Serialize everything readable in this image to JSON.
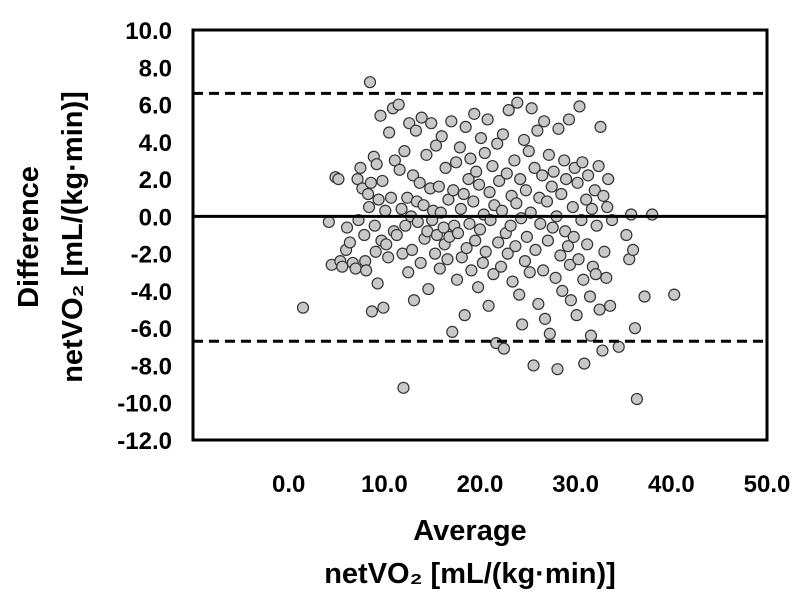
{
  "chart_data": {
    "type": "scatter",
    "title": "",
    "xlabel": "Average",
    "xlabel_unit": "netVO₂ [mL/(kg·min)]",
    "ylabel": "Difference",
    "ylabel_unit": "netVO₂ [mL/(kg·min)]",
    "xlim": [
      -10,
      50
    ],
    "ylim": [
      -12,
      10
    ],
    "x_ticks": [
      "0.0",
      "10.0",
      "20.0",
      "30.0",
      "40.0",
      "50.0"
    ],
    "y_ticks": [
      "10.0",
      "8.0",
      "6.0",
      "4.0",
      "2.0",
      "0.0",
      "-2.0",
      "-4.0",
      "-6.0",
      "-8.0",
      "-10.0",
      "-12.0"
    ],
    "grid": false,
    "marker_color": "#c8c8c8",
    "marker_edge": "#333333",
    "reference_lines": [
      {
        "y": 6.6,
        "style": "dashed"
      },
      {
        "y": 0.0,
        "style": "solid"
      },
      {
        "y": -6.7,
        "style": "dashed"
      }
    ],
    "points": [
      [
        1.5,
        -4.9
      ],
      [
        4.2,
        -0.3
      ],
      [
        4.5,
        -2.6
      ],
      [
        4.9,
        2.1
      ],
      [
        5.2,
        2.0
      ],
      [
        5.4,
        -2.4
      ],
      [
        5.6,
        -2.7
      ],
      [
        6.0,
        -1.8
      ],
      [
        6.1,
        -0.6
      ],
      [
        6.4,
        -1.4
      ],
      [
        6.7,
        -2.5
      ],
      [
        7.0,
        -2.8
      ],
      [
        7.2,
        2.0
      ],
      [
        7.3,
        -0.2
      ],
      [
        7.5,
        2.6
      ],
      [
        7.7,
        1.5
      ],
      [
        7.9,
        -1.0
      ],
      [
        8.0,
        -2.4
      ],
      [
        8.1,
        -2.9
      ],
      [
        8.3,
        1.2
      ],
      [
        8.4,
        0.5
      ],
      [
        8.5,
        7.2
      ],
      [
        8.6,
        1.8
      ],
      [
        8.7,
        -5.1
      ],
      [
        8.9,
        3.2
      ],
      [
        9.0,
        -0.5
      ],
      [
        9.1,
        -1.9
      ],
      [
        9.2,
        2.8
      ],
      [
        9.3,
        -3.6
      ],
      [
        9.4,
        0.9
      ],
      [
        9.6,
        5.4
      ],
      [
        9.7,
        -1.3
      ],
      [
        9.8,
        1.9
      ],
      [
        9.9,
        -4.9
      ],
      [
        10.1,
        0.3
      ],
      [
        10.2,
        -1.5
      ],
      [
        10.4,
        -2.2
      ],
      [
        10.5,
        4.5
      ],
      [
        10.7,
        1.0
      ],
      [
        10.9,
        5.8
      ],
      [
        11.0,
        -0.8
      ],
      [
        11.1,
        3.0
      ],
      [
        11.3,
        -1.0
      ],
      [
        11.5,
        6.0
      ],
      [
        11.6,
        2.5
      ],
      [
        11.8,
        0.4
      ],
      [
        11.9,
        -2.0
      ],
      [
        12.0,
        -9.2
      ],
      [
        12.1,
        3.5
      ],
      [
        12.2,
        -0.5
      ],
      [
        12.4,
        1.0
      ],
      [
        12.5,
        -3.0
      ],
      [
        12.6,
        5.0
      ],
      [
        12.8,
        0.0
      ],
      [
        12.9,
        -1.8
      ],
      [
        13.0,
        2.2
      ],
      [
        13.1,
        -4.5
      ],
      [
        13.3,
        4.6
      ],
      [
        13.4,
        0.8
      ],
      [
        13.5,
        -0.3
      ],
      [
        13.7,
        1.8
      ],
      [
        13.8,
        -2.5
      ],
      [
        13.9,
        5.3
      ],
      [
        14.1,
        0.6
      ],
      [
        14.2,
        -1.2
      ],
      [
        14.4,
        3.3
      ],
      [
        14.5,
        -0.8
      ],
      [
        14.6,
        -3.9
      ],
      [
        14.8,
        1.5
      ],
      [
        14.9,
        5.0
      ],
      [
        15.0,
        -0.2
      ],
      [
        15.1,
        0.3
      ],
      [
        15.3,
        -2.0
      ],
      [
        15.4,
        3.8
      ],
      [
        15.5,
        -1.0
      ],
      [
        15.7,
        1.6
      ],
      [
        15.8,
        -2.8
      ],
      [
        15.9,
        0.2
      ],
      [
        16.0,
        4.3
      ],
      [
        16.2,
        -0.6
      ],
      [
        16.3,
        -1.5
      ],
      [
        16.4,
        2.6
      ],
      [
        16.6,
        -2.3
      ],
      [
        16.7,
        0.9
      ],
      [
        16.8,
        -1.1
      ],
      [
        17.0,
        5.1
      ],
      [
        17.1,
        -6.2
      ],
      [
        17.2,
        1.4
      ],
      [
        17.3,
        -0.5
      ],
      [
        17.5,
        2.9
      ],
      [
        17.6,
        -3.4
      ],
      [
        17.7,
        -0.9
      ],
      [
        17.9,
        3.7
      ],
      [
        18.0,
        0.4
      ],
      [
        18.1,
        -2.2
      ],
      [
        18.3,
        1.2
      ],
      [
        18.4,
        -5.3
      ],
      [
        18.5,
        4.8
      ],
      [
        18.6,
        -1.7
      ],
      [
        18.8,
        2.0
      ],
      [
        18.9,
        -0.4
      ],
      [
        19.0,
        3.1
      ],
      [
        19.1,
        -2.9
      ],
      [
        19.3,
        0.8
      ],
      [
        19.4,
        5.5
      ],
      [
        19.5,
        -1.3
      ],
      [
        19.6,
        2.4
      ],
      [
        19.8,
        -3.8
      ],
      [
        19.9,
        1.7
      ],
      [
        20.0,
        -0.7
      ],
      [
        20.1,
        4.2
      ],
      [
        20.3,
        -2.5
      ],
      [
        20.4,
        0.1
      ],
      [
        20.5,
        3.4
      ],
      [
        20.6,
        -1.9
      ],
      [
        20.8,
        5.2
      ],
      [
        20.9,
        -4.8
      ],
      [
        21.0,
        1.3
      ],
      [
        21.1,
        -0.2
      ],
      [
        21.3,
        2.7
      ],
      [
        21.4,
        -3.1
      ],
      [
        21.5,
        0.6
      ],
      [
        21.7,
        -6.8
      ],
      [
        21.8,
        3.9
      ],
      [
        21.9,
        -1.4
      ],
      [
        22.0,
        1.9
      ],
      [
        22.2,
        -2.7
      ],
      [
        22.3,
        0.3
      ],
      [
        22.4,
        4.4
      ],
      [
        22.5,
        -7.1
      ],
      [
        22.7,
        -0.9
      ],
      [
        22.8,
        2.3
      ],
      [
        22.9,
        -2.0
      ],
      [
        23.0,
        5.7
      ],
      [
        23.2,
        -0.5
      ],
      [
        23.3,
        1.1
      ],
      [
        23.4,
        -3.5
      ],
      [
        23.6,
        3.0
      ],
      [
        23.7,
        -1.6
      ],
      [
        23.8,
        0.7
      ],
      [
        23.9,
        6.1
      ],
      [
        24.1,
        -4.2
      ],
      [
        24.2,
        2.0
      ],
      [
        24.3,
        -0.1
      ],
      [
        24.4,
        -5.8
      ],
      [
        24.6,
        4.1
      ],
      [
        24.7,
        -2.4
      ],
      [
        24.8,
        1.4
      ],
      [
        24.9,
        -1.1
      ],
      [
        25.1,
        3.5
      ],
      [
        25.2,
        -3.0
      ],
      [
        25.3,
        0.2
      ],
      [
        25.4,
        5.8
      ],
      [
        25.6,
        -8.0
      ],
      [
        25.7,
        2.6
      ],
      [
        25.8,
        -1.8
      ],
      [
        26.0,
        4.6
      ],
      [
        26.1,
        -4.7
      ],
      [
        26.2,
        1.0
      ],
      [
        26.3,
        -0.4
      ],
      [
        26.5,
        2.2
      ],
      [
        26.6,
        -2.9
      ],
      [
        26.7,
        5.1
      ],
      [
        26.8,
        -5.5
      ],
      [
        27.0,
        0.8
      ],
      [
        27.1,
        -1.3
      ],
      [
        27.2,
        3.3
      ],
      [
        27.3,
        -6.3
      ],
      [
        27.5,
        1.6
      ],
      [
        27.6,
        -0.6
      ],
      [
        27.7,
        2.4
      ],
      [
        27.9,
        -3.3
      ],
      [
        28.0,
        0.0
      ],
      [
        28.1,
        -8.2
      ],
      [
        28.2,
        4.7
      ],
      [
        28.4,
        -2.1
      ],
      [
        28.5,
        1.2
      ],
      [
        28.6,
        -4.0
      ],
      [
        28.8,
        3.0
      ],
      [
        28.9,
        -0.8
      ],
      [
        29.0,
        2.0
      ],
      [
        29.2,
        -1.6
      ],
      [
        29.3,
        5.2
      ],
      [
        29.4,
        -2.6
      ],
      [
        29.5,
        -4.5
      ],
      [
        29.7,
        0.5
      ],
      [
        29.8,
        -1.1
      ],
      [
        29.9,
        2.6
      ],
      [
        30.1,
        -5.3
      ],
      [
        30.2,
        1.8
      ],
      [
        30.3,
        -2.3
      ],
      [
        30.4,
        5.9
      ],
      [
        30.6,
        -0.2
      ],
      [
        30.7,
        2.9
      ],
      [
        30.8,
        -3.4
      ],
      [
        30.9,
        -7.9
      ],
      [
        31.1,
        0.9
      ],
      [
        31.2,
        -1.5
      ],
      [
        31.3,
        2.2
      ],
      [
        31.5,
        -4.3
      ],
      [
        31.6,
        -6.4
      ],
      [
        31.7,
        0.4
      ],
      [
        31.8,
        -2.7
      ],
      [
        32.0,
        1.4
      ],
      [
        32.1,
        -3.1
      ],
      [
        32.2,
        -0.5
      ],
      [
        32.4,
        2.7
      ],
      [
        32.5,
        -5.0
      ],
      [
        32.6,
        4.8
      ],
      [
        32.8,
        -7.2
      ],
      [
        32.9,
        1.1
      ],
      [
        33.0,
        -1.9
      ],
      [
        33.2,
        -3.3
      ],
      [
        33.3,
        0.5
      ],
      [
        33.4,
        2.0
      ],
      [
        33.6,
        -4.8
      ],
      [
        33.8,
        -0.2
      ],
      [
        34.5,
        -7.0
      ],
      [
        35.3,
        -1.0
      ],
      [
        35.6,
        -2.3
      ],
      [
        35.8,
        0.1
      ],
      [
        36.0,
        -1.8
      ],
      [
        36.2,
        -6.0
      ],
      [
        36.4,
        -9.8
      ],
      [
        37.2,
        -4.3
      ],
      [
        38.0,
        0.1
      ],
      [
        40.3,
        -4.2
      ]
    ]
  }
}
